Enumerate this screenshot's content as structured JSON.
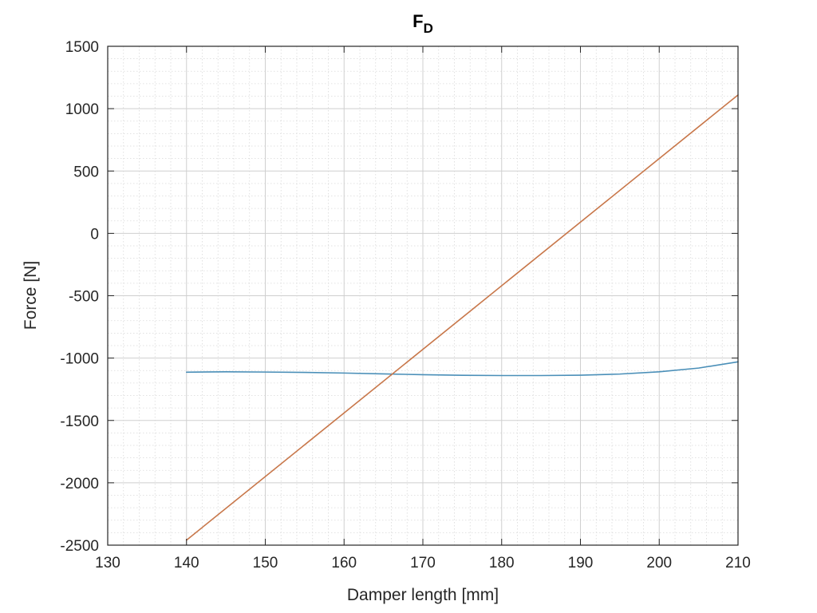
{
  "chart_data": {
    "type": "line",
    "title_main": "F",
    "title_subscript": "D",
    "xlabel": "Damper length [mm]",
    "ylabel": "Force [N]",
    "xlim": [
      130,
      210
    ],
    "ylim": [
      -2500,
      1500
    ],
    "xticks": [
      130,
      140,
      150,
      160,
      170,
      180,
      190,
      200,
      210
    ],
    "yticks": [
      -2500,
      -2000,
      -1500,
      -1000,
      -500,
      0,
      500,
      1000,
      1500
    ],
    "xminor_step": 2,
    "yminor_step": 100,
    "grid": true,
    "minor_grid": true,
    "colors": {
      "series1": "#4a8fb8",
      "series2": "#c8774a",
      "grid": "#d9d9d9",
      "axis": "#262626"
    },
    "series": [
      {
        "x": [
          140,
          145,
          150,
          155,
          160,
          165,
          170,
          175,
          180,
          185,
          190,
          195,
          200,
          205,
          210
        ],
        "y": [
          -1113,
          -1110,
          -1112,
          -1115,
          -1120,
          -1127,
          -1133,
          -1138,
          -1140,
          -1140,
          -1137,
          -1128,
          -1110,
          -1080,
          -1030
        ]
      },
      {
        "x": [
          140,
          210
        ],
        "y": [
          -2460,
          1110
        ]
      }
    ]
  }
}
